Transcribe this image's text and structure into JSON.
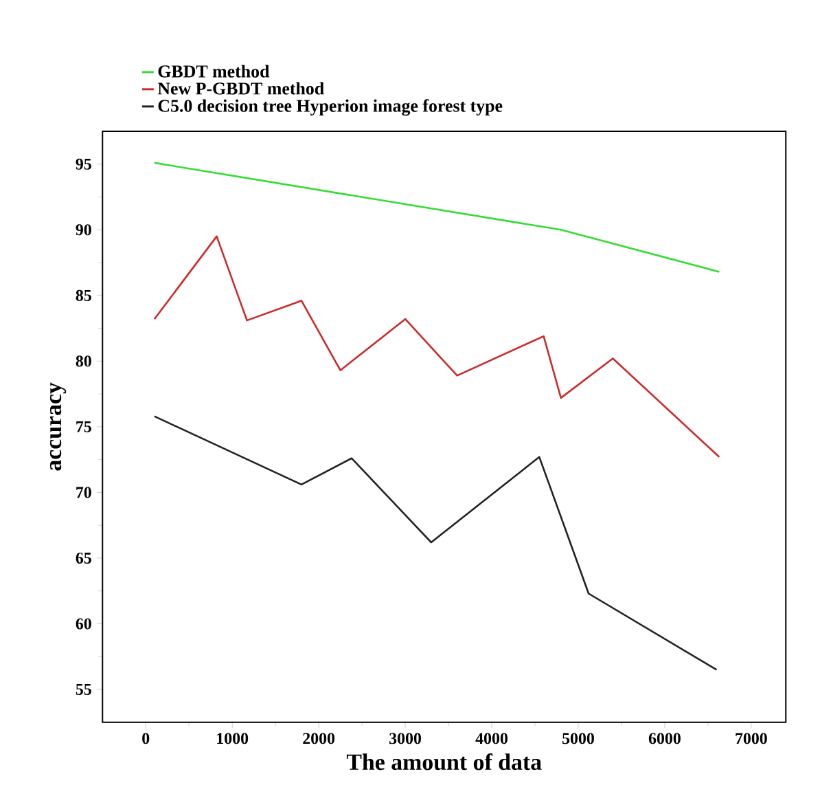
{
  "chart_data": {
    "type": "line",
    "xlabel": "The amount of data",
    "ylabel": "accuracy",
    "xlim": [
      -500,
      7400
    ],
    "ylim": [
      52.5,
      97.5
    ],
    "xticks": [
      0,
      1000,
      2000,
      3000,
      4000,
      5000,
      6000,
      7000
    ],
    "yticks": [
      55,
      60,
      65,
      70,
      75,
      80,
      85,
      90,
      95
    ],
    "legend": "top",
    "grid": false,
    "marker": "none",
    "line_style": "solid",
    "series": [
      {
        "name": "GBDT method",
        "color": "#33dd33",
        "x": [
          100,
          4800,
          6630
        ],
        "values": [
          95.1,
          90.0,
          86.8
        ]
      },
      {
        "name": "New P-GBDT method",
        "color": "#cc2a2a",
        "x": [
          100,
          820,
          1170,
          1800,
          2250,
          3000,
          3600,
          4600,
          4800,
          5400,
          6630
        ],
        "values": [
          83.2,
          89.5,
          83.1,
          84.6,
          79.3,
          83.2,
          78.9,
          81.9,
          77.2,
          80.2,
          72.7
        ]
      },
      {
        "name": "C5.0 decision tree Hyperion image forest type",
        "color": "#222222",
        "x": [
          100,
          1800,
          2380,
          3300,
          4550,
          5120,
          6600
        ],
        "values": [
          75.8,
          70.6,
          72.6,
          66.2,
          72.7,
          62.3,
          56.5
        ]
      }
    ]
  }
}
